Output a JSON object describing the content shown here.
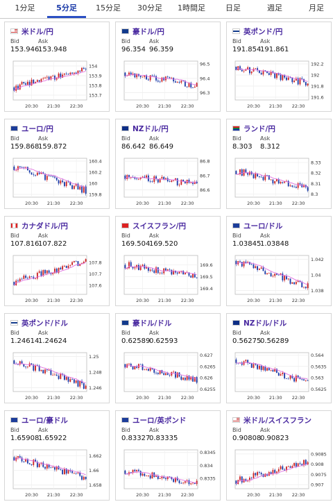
{
  "tabs": [
    {
      "label": "1分足",
      "active": false
    },
    {
      "label": "5分足",
      "active": true
    },
    {
      "label": "15分足",
      "active": false
    },
    {
      "label": "30分足",
      "active": false
    },
    {
      "label": "1時間足",
      "active": false
    },
    {
      "label": "日足",
      "active": false
    },
    {
      "label": "週足",
      "active": false
    },
    {
      "label": "月足",
      "active": false
    }
  ],
  "labels": {
    "bid": "Bid",
    "ask": "Ask"
  },
  "colors": {
    "up": "#cc2222",
    "down": "#1a3aa8",
    "ma": "#e070e0",
    "accent": "#2a4fc4",
    "pair_text": "#4a2aa0"
  },
  "cards": [
    {
      "pair": "米ドル/円",
      "flag": "us",
      "bid": "153.946",
      "ask": "153.948",
      "chart_data": {
        "type": "candlestick",
        "x_ticks": [
          "20:30",
          "21:30",
          "22:30"
        ],
        "y_ticks": [
          "154",
          "153.9",
          "153.8",
          "153.7"
        ],
        "ylim": [
          153.65,
          154.05
        ],
        "start": 153.78,
        "end": 153.98,
        "trend": 0.12
      }
    },
    {
      "pair": "豪ドル/円",
      "flag": "au",
      "bid": "96.354",
      "ask": "96.359",
      "chart_data": {
        "type": "candlestick",
        "x_ticks": [
          "20:30",
          "21:30",
          "22:30"
        ],
        "y_ticks": [
          "96.5",
          "96.4",
          "96.3"
        ],
        "ylim": [
          96.25,
          96.52
        ],
        "start": 96.44,
        "end": 96.35,
        "trend": -0.05
      }
    },
    {
      "pair": "英ポンド/円",
      "flag": "uk",
      "bid": "191.854",
      "ask": "191.861",
      "chart_data": {
        "type": "candlestick",
        "x_ticks": [
          "20:30",
          "21:30",
          "22:30"
        ],
        "y_ticks": [
          "192.2",
          "192",
          "191.8",
          "191.6"
        ],
        "ylim": [
          191.55,
          192.25
        ],
        "start": 192.15,
        "end": 191.85,
        "trend": -0.3
      }
    },
    {
      "pair": "ユーロ/円",
      "flag": "eu",
      "bid": "159.868",
      "ask": "159.872",
      "chart_data": {
        "type": "candlestick",
        "x_ticks": [
          "20:30",
          "21:30",
          "22:30"
        ],
        "y_ticks": [
          "160.4",
          "160.2",
          "160",
          "159.8"
        ],
        "ylim": [
          159.75,
          160.45
        ],
        "start": 160.3,
        "end": 159.87,
        "trend": -0.4
      }
    },
    {
      "pair": "NZドル/円",
      "flag": "nz",
      "bid": "86.642",
      "ask": "86.649",
      "chart_data": {
        "type": "candlestick",
        "x_ticks": [
          "20:30",
          "21:30",
          "22:30"
        ],
        "y_ticks": [
          "86.8",
          "86.7",
          "86.6"
        ],
        "ylim": [
          86.55,
          86.82
        ],
        "start": 86.7,
        "end": 86.64,
        "trend": -0.05
      }
    },
    {
      "pair": "ランド/円",
      "flag": "za",
      "bid": "8.303",
      "ask": "8.312",
      "chart_data": {
        "type": "candlestick",
        "x_ticks": [
          "20:30",
          "21:30",
          "22:30"
        ],
        "y_ticks": [
          "8.33",
          "8.32",
          "8.31",
          "8.3"
        ],
        "ylim": [
          8.297,
          8.334
        ],
        "start": 8.322,
        "end": 8.305,
        "trend": -0.015
      }
    },
    {
      "pair": "カナダドル/円",
      "flag": "ca",
      "bid": "107.816",
      "ask": "107.822",
      "chart_data": {
        "type": "candlestick",
        "x_ticks": [
          "20:30",
          "21:30",
          "22:30"
        ],
        "y_ticks": [
          "107.8",
          "107.7",
          "107.6"
        ],
        "ylim": [
          107.52,
          107.86
        ],
        "start": 107.63,
        "end": 107.81,
        "trend": 0.1
      }
    },
    {
      "pair": "スイスフラン/円",
      "flag": "ch",
      "bid": "169.504",
      "ask": "169.520",
      "chart_data": {
        "type": "candlestick",
        "x_ticks": [
          "20:30",
          "21:30",
          "22:30"
        ],
        "y_ticks": [
          "169.6",
          "169.5",
          "169.4"
        ],
        "ylim": [
          169.35,
          169.68
        ],
        "start": 169.6,
        "end": 169.5,
        "trend": -0.08
      }
    },
    {
      "pair": "ユーロ/ドル",
      "flag": "eu",
      "bid": "1.03845",
      "ask": "1.03848",
      "chart_data": {
        "type": "candlestick",
        "x_ticks": [
          "20:30",
          "21:30",
          "22:30"
        ],
        "y_ticks": [
          "1.042",
          "1.04",
          "1.038"
        ],
        "ylim": [
          1.0375,
          1.0425
        ],
        "start": 1.0418,
        "end": 1.0385,
        "trend": -0.003
      }
    },
    {
      "pair": "英ポンド/ドル",
      "flag": "uk",
      "bid": "1.24614",
      "ask": "1.24624",
      "chart_data": {
        "type": "candlestick",
        "x_ticks": [
          "20:30",
          "21:30",
          "22:30"
        ],
        "y_ticks": [
          "1.25",
          "1.248",
          "1.246"
        ],
        "ylim": [
          1.2455,
          1.2505
        ],
        "start": 1.2495,
        "end": 1.2462,
        "trend": -0.003
      }
    },
    {
      "pair": "豪ドル/ドル",
      "flag": "au",
      "bid": "0.62589",
      "ask": "0.62593",
      "chart_data": {
        "type": "candlestick",
        "x_ticks": [
          "20:30",
          "21:30",
          "22:30"
        ],
        "y_ticks": [
          "0.627",
          "0.6265",
          "0.626",
          "0.6255"
        ],
        "ylim": [
          0.6254,
          0.6271
        ],
        "start": 0.6266,
        "end": 0.6259,
        "trend": -0.0006
      }
    },
    {
      "pair": "NZドル/ドル",
      "flag": "nz",
      "bid": "0.56275",
      "ask": "0.56289",
      "chart_data": {
        "type": "candlestick",
        "x_ticks": [
          "20:30",
          "21:30",
          "22:30"
        ],
        "y_ticks": [
          "0.564",
          "0.5635",
          "0.563",
          "0.5625"
        ],
        "ylim": [
          0.5624,
          0.5641
        ],
        "start": 0.5638,
        "end": 0.5628,
        "trend": -0.0009
      }
    },
    {
      "pair": "ユーロ/豪ドル",
      "flag": "eu",
      "bid": "1.65908",
      "ask": "1.65922",
      "chart_data": {
        "type": "candlestick",
        "x_ticks": [
          "20:30",
          "21:30",
          "22:30"
        ],
        "y_ticks": [
          "1.662",
          "1.66",
          "1.658"
        ],
        "ylim": [
          1.6575,
          1.6628
        ],
        "start": 1.6618,
        "end": 1.659,
        "trend": -0.0025
      }
    },
    {
      "pair": "ユーロ/英ポンド",
      "flag": "eu",
      "bid": "0.83327",
      "ask": "0.83335",
      "chart_data": {
        "type": "candlestick",
        "x_ticks": [
          "20:30",
          "21:30",
          "22:30"
        ],
        "y_ticks": [
          "0.8345",
          "0.834",
          "0.8335"
        ],
        "ylim": [
          0.8331,
          0.8346
        ],
        "start": 0.8338,
        "end": 0.8333,
        "trend": -0.0003
      }
    },
    {
      "pair": "米ドル/スイスフラン",
      "flag": "us",
      "bid": "0.90808",
      "ask": "0.90823",
      "chart_data": {
        "type": "candlestick",
        "x_ticks": [
          "20:30",
          "21:30",
          "22:30"
        ],
        "y_ticks": [
          "0.9085",
          "0.908",
          "0.9075",
          "0.907"
        ],
        "ylim": [
          0.9068,
          0.9087
        ],
        "start": 0.9072,
        "end": 0.9081,
        "trend": 0.0008
      }
    }
  ]
}
